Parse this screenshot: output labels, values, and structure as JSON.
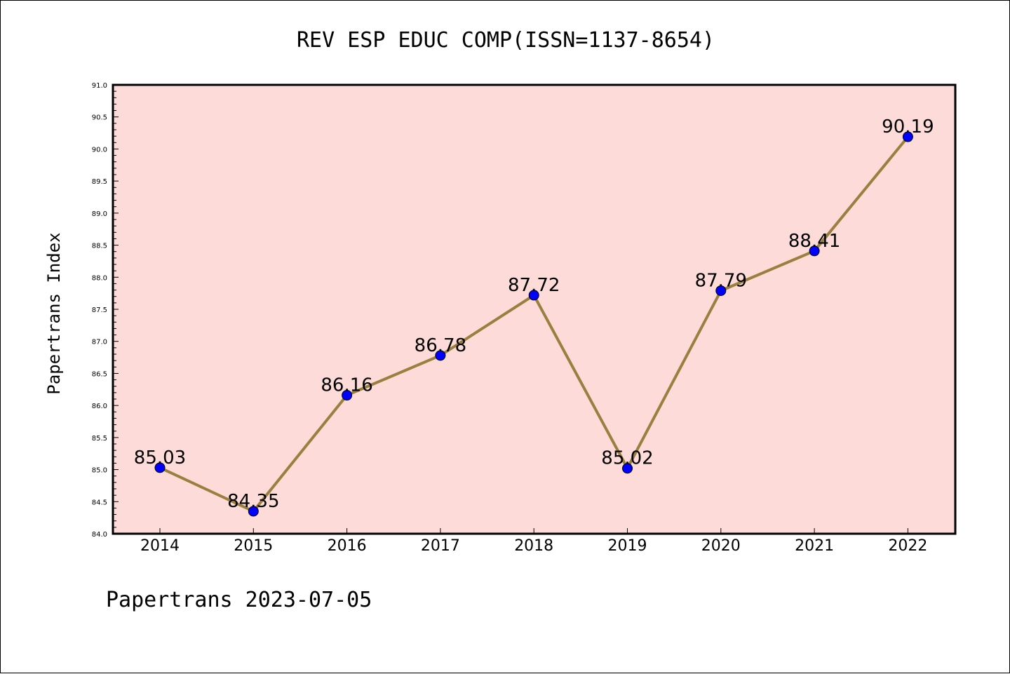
{
  "chart_data": {
    "type": "line",
    "title": "REV ESP EDUC COMP(ISSN=1137-8654)",
    "xlabel": "",
    "ylabel": "Papertrans Index",
    "x": [
      "2014",
      "2015",
      "2016",
      "2017",
      "2018",
      "2019",
      "2020",
      "2021",
      "2022"
    ],
    "series": [
      {
        "values": [
          85.03,
          84.35,
          86.16,
          86.78,
          87.72,
          85.02,
          87.79,
          88.41,
          90.19
        ],
        "labels": [
          "85.03",
          "84.35",
          "86.16",
          "86.78",
          "87.72",
          "85.02",
          "87.79",
          "88.41",
          "90.19"
        ]
      }
    ],
    "ylim": [
      84.0,
      91.0
    ],
    "yticks": [
      "84.0",
      "84.5",
      "85.0",
      "85.5",
      "86.0",
      "86.5",
      "87.0",
      "87.5",
      "88.0",
      "88.5",
      "89.0",
      "89.5",
      "90.0",
      "90.5",
      "91.0"
    ],
    "grid": false,
    "legend": "none",
    "footer": "Papertrans 2023-07-05",
    "colors": {
      "plot_background": "#fddbd9",
      "line": "#9a7f3e",
      "marker": "#0000ff",
      "axes": "#000000"
    }
  }
}
